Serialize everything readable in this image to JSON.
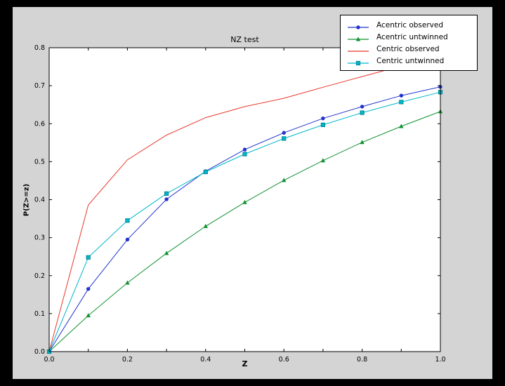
{
  "window": {
    "bg": "#000000"
  },
  "chart_data": {
    "type": "line",
    "title": "NZ test",
    "x_axis": {
      "label": "Z",
      "min": 0.0,
      "max": 1.0,
      "tick_step": 0.1,
      "label_step": 0.2
    },
    "y_axis": {
      "label": "P(Z>=z)",
      "min": 0.0,
      "max": 0.8,
      "tick_step": 0.1,
      "label_step": 0.1
    },
    "x": [
      0.0,
      0.1,
      0.2,
      0.3,
      0.4,
      0.5,
      0.6,
      0.7,
      0.8,
      0.9,
      1.0
    ],
    "series": [
      {
        "name": "Acentric observed",
        "color": "#2233cc",
        "marker": "circle",
        "values": [
          0.0,
          0.165,
          0.295,
          0.401,
          0.475,
          0.532,
          0.576,
          0.614,
          0.645,
          0.674,
          0.697
        ]
      },
      {
        "name": "Acentric untwinned",
        "color": "#109030",
        "marker": "triangle-up",
        "values": [
          0.0,
          0.095,
          0.181,
          0.259,
          0.33,
          0.393,
          0.451,
          0.503,
          0.551,
          0.593,
          0.632
        ]
      },
      {
        "name": "Centric observed",
        "color": "#e8372c",
        "marker": "none",
        "values": [
          0.0,
          0.386,
          0.505,
          0.57,
          0.616,
          0.645,
          0.667,
          0.696,
          0.724,
          0.752,
          0.776
        ]
      },
      {
        "name": "Centric untwinned",
        "color": "#00b7c9",
        "marker": "square",
        "values": [
          0.0,
          0.248,
          0.345,
          0.416,
          0.473,
          0.52,
          0.561,
          0.597,
          0.629,
          0.657,
          0.683
        ]
      }
    ],
    "legend": {
      "position": "upper right"
    },
    "grid": false,
    "plot_bg": "#ffffff",
    "figure_bg": "#d4d4d4"
  }
}
